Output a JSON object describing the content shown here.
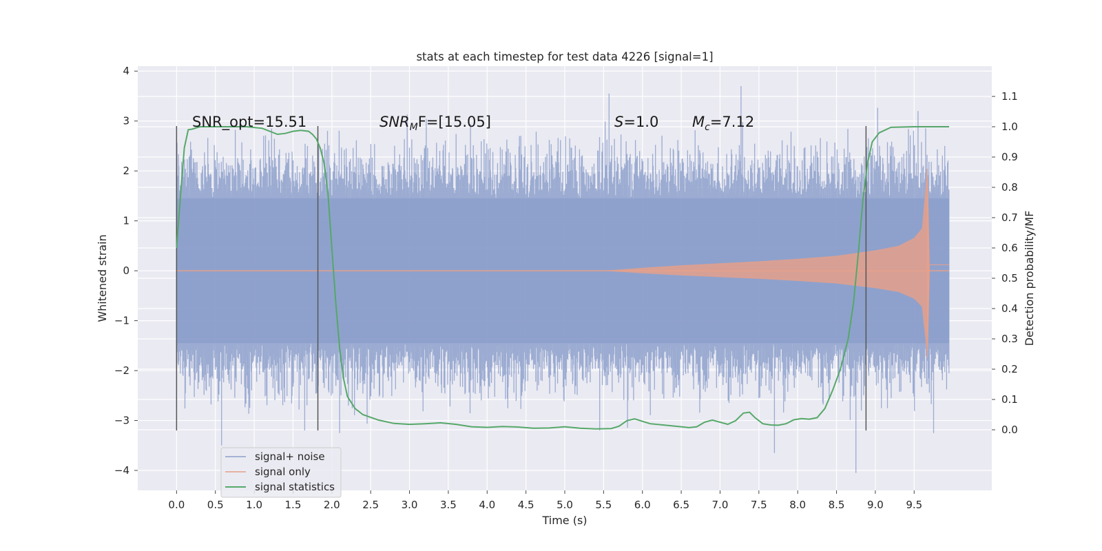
{
  "chart_data": {
    "type": "line",
    "title": "stats at each timestep for test data 4226 [signal=1]",
    "xlabel": "Time (s)",
    "ylabel_left": "Whitened strain",
    "ylabel_right": "Detection probability/MF",
    "xlim": [
      -0.5,
      10.5
    ],
    "ylim_left": [
      -4.4,
      4.1
    ],
    "ylim_right": [
      -0.2,
      1.2
    ],
    "x_ticks": [
      "0.0",
      "0.5",
      "1.0",
      "1.5",
      "2.0",
      "2.5",
      "3.0",
      "3.5",
      "4.0",
      "4.5",
      "5.0",
      "5.5",
      "6.0",
      "6.5",
      "7.0",
      "7.5",
      "8.0",
      "8.5",
      "9.0",
      "9.5"
    ],
    "y_left_ticks": [
      "4",
      "3",
      "2",
      "1",
      "0",
      "−1",
      "−2",
      "−3",
      "−4"
    ],
    "y_right_ticks": [
      "1.1",
      "1.0",
      "0.9",
      "0.8",
      "0.7",
      "0.6",
      "0.5",
      "0.4",
      "0.3",
      "0.2",
      "0.1",
      "0.0"
    ],
    "grid": true,
    "legend_position": "lower-left",
    "annotations": {
      "snr_opt": "SNR_opt=15.51",
      "snr_mf_sym": "SNR",
      "snr_mf_sub": "M",
      "snr_mf_tail": "F=[15.05]",
      "s_sym": "S",
      "s_val": "=1.0",
      "mc_sym": "M",
      "mc_sub": "c",
      "mc_val": "=7.12"
    },
    "vertical_markers_s": [
      0.0,
      1.82,
      8.88
    ],
    "series": [
      {
        "name": "signal+ noise",
        "color": "#8da0cb",
        "x_range": [
          0.0,
          9.95
        ],
        "envelope_abs": 1.45,
        "peak_max": 3.7,
        "peak_min": -4.05
      },
      {
        "name": "signal only",
        "color": "#e5a08a",
        "x_range": [
          0.0,
          9.95
        ],
        "merger_time": 9.67,
        "peak_max": 2.05,
        "peak_min": -1.75,
        "envelope": [
          {
            "x": 5.5,
            "y": 0.0
          },
          {
            "x": 6.0,
            "y": 0.06
          },
          {
            "x": 6.5,
            "y": 0.11
          },
          {
            "x": 7.0,
            "y": 0.15
          },
          {
            "x": 7.5,
            "y": 0.19
          },
          {
            "x": 8.0,
            "y": 0.24
          },
          {
            "x": 8.5,
            "y": 0.3
          },
          {
            "x": 9.0,
            "y": 0.41
          },
          {
            "x": 9.3,
            "y": 0.5
          },
          {
            "x": 9.5,
            "y": 0.66
          },
          {
            "x": 9.6,
            "y": 0.85
          },
          {
            "x": 9.67,
            "y": 2.05
          }
        ]
      },
      {
        "name": "signal statistics",
        "color": "#55a868",
        "axis": "right",
        "points": [
          {
            "x": 0.0,
            "y": 0.6
          },
          {
            "x": 0.05,
            "y": 0.77
          },
          {
            "x": 0.1,
            "y": 0.93
          },
          {
            "x": 0.15,
            "y": 0.99
          },
          {
            "x": 0.2,
            "y": 0.992
          },
          {
            "x": 0.3,
            "y": 1.0
          },
          {
            "x": 0.5,
            "y": 1.0
          },
          {
            "x": 0.9,
            "y": 1.0
          },
          {
            "x": 1.1,
            "y": 0.995
          },
          {
            "x": 1.2,
            "y": 0.985
          },
          {
            "x": 1.3,
            "y": 0.975
          },
          {
            "x": 1.4,
            "y": 0.978
          },
          {
            "x": 1.5,
            "y": 0.985
          },
          {
            "x": 1.6,
            "y": 0.988
          },
          {
            "x": 1.7,
            "y": 0.985
          },
          {
            "x": 1.75,
            "y": 0.975
          },
          {
            "x": 1.8,
            "y": 0.96
          },
          {
            "x": 1.85,
            "y": 0.93
          },
          {
            "x": 1.9,
            "y": 0.88
          },
          {
            "x": 1.95,
            "y": 0.78
          },
          {
            "x": 2.0,
            "y": 0.6
          },
          {
            "x": 2.05,
            "y": 0.42
          },
          {
            "x": 2.1,
            "y": 0.27
          },
          {
            "x": 2.15,
            "y": 0.17
          },
          {
            "x": 2.2,
            "y": 0.11
          },
          {
            "x": 2.3,
            "y": 0.07
          },
          {
            "x": 2.4,
            "y": 0.05
          },
          {
            "x": 2.6,
            "y": 0.032
          },
          {
            "x": 2.8,
            "y": 0.021
          },
          {
            "x": 3.0,
            "y": 0.018
          },
          {
            "x": 3.2,
            "y": 0.02
          },
          {
            "x": 3.4,
            "y": 0.023
          },
          {
            "x": 3.6,
            "y": 0.018
          },
          {
            "x": 3.8,
            "y": 0.01
          },
          {
            "x": 4.0,
            "y": 0.008
          },
          {
            "x": 4.2,
            "y": 0.011
          },
          {
            "x": 4.4,
            "y": 0.009
          },
          {
            "x": 4.6,
            "y": 0.005
          },
          {
            "x": 4.8,
            "y": 0.006
          },
          {
            "x": 5.0,
            "y": 0.01
          },
          {
            "x": 5.2,
            "y": 0.005
          },
          {
            "x": 5.4,
            "y": 0.003
          },
          {
            "x": 5.6,
            "y": 0.004
          },
          {
            "x": 5.7,
            "y": 0.012
          },
          {
            "x": 5.8,
            "y": 0.03
          },
          {
            "x": 5.9,
            "y": 0.036
          },
          {
            "x": 6.0,
            "y": 0.028
          },
          {
            "x": 6.1,
            "y": 0.02
          },
          {
            "x": 6.3,
            "y": 0.015
          },
          {
            "x": 6.5,
            "y": 0.01
          },
          {
            "x": 6.6,
            "y": 0.007
          },
          {
            "x": 6.7,
            "y": 0.01
          },
          {
            "x": 6.8,
            "y": 0.025
          },
          {
            "x": 6.9,
            "y": 0.032
          },
          {
            "x": 7.0,
            "y": 0.025
          },
          {
            "x": 7.1,
            "y": 0.018
          },
          {
            "x": 7.2,
            "y": 0.03
          },
          {
            "x": 7.3,
            "y": 0.055
          },
          {
            "x": 7.38,
            "y": 0.058
          },
          {
            "x": 7.45,
            "y": 0.04
          },
          {
            "x": 7.55,
            "y": 0.02
          },
          {
            "x": 7.65,
            "y": 0.016
          },
          {
            "x": 7.75,
            "y": 0.015
          },
          {
            "x": 7.85,
            "y": 0.02
          },
          {
            "x": 7.95,
            "y": 0.033
          },
          {
            "x": 8.05,
            "y": 0.037
          },
          {
            "x": 8.15,
            "y": 0.035
          },
          {
            "x": 8.25,
            "y": 0.04
          },
          {
            "x": 8.35,
            "y": 0.07
          },
          {
            "x": 8.45,
            "y": 0.13
          },
          {
            "x": 8.55,
            "y": 0.2
          },
          {
            "x": 8.65,
            "y": 0.3
          },
          {
            "x": 8.72,
            "y": 0.42
          },
          {
            "x": 8.78,
            "y": 0.58
          },
          {
            "x": 8.84,
            "y": 0.76
          },
          {
            "x": 8.9,
            "y": 0.88
          },
          {
            "x": 8.96,
            "y": 0.95
          },
          {
            "x": 9.05,
            "y": 0.98
          },
          {
            "x": 9.2,
            "y": 0.998
          },
          {
            "x": 9.5,
            "y": 1.0
          },
          {
            "x": 9.95,
            "y": 1.0
          }
        ]
      }
    ]
  }
}
